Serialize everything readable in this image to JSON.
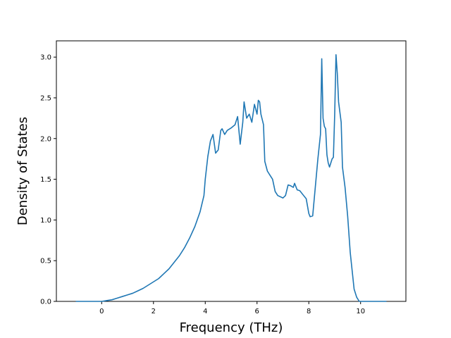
{
  "chart_data": {
    "type": "line",
    "title": "",
    "xlabel": "Frequency (THz)",
    "ylabel": "Density of States",
    "xlim": [
      -1.75,
      11.75
    ],
    "ylim": [
      0.0,
      3.2
    ],
    "x_ticks": [
      0,
      2,
      4,
      6,
      8,
      10
    ],
    "y_ticks": [
      0.0,
      0.5,
      1.0,
      1.5,
      2.0,
      2.5,
      3.0
    ],
    "x_tick_labels": [
      "0",
      "2",
      "4",
      "6",
      "8",
      "10"
    ],
    "y_tick_labels": [
      "0.0",
      "0.5",
      "1.0",
      "1.5",
      "2.0",
      "2.5",
      "3.0"
    ],
    "grid": false,
    "legend": "none",
    "line_color": "#1f77b4",
    "series": [
      {
        "x": [
          -1.0,
          -0.5,
          0.0,
          0.2,
          0.4,
          0.6,
          0.8,
          1.0,
          1.2,
          1.4,
          1.6,
          1.8,
          2.0,
          2.2,
          2.4,
          2.6,
          2.8,
          3.0,
          3.2,
          3.4,
          3.6,
          3.8,
          3.95,
          4.0,
          4.1,
          4.2,
          4.3,
          4.4,
          4.5,
          4.6,
          4.65,
          4.75,
          4.85,
          5.0,
          5.15,
          5.25,
          5.35,
          5.45,
          5.5,
          5.6,
          5.7,
          5.8,
          5.9,
          6.0,
          6.05,
          6.1,
          6.15,
          6.25,
          6.3,
          6.4,
          6.5,
          6.6,
          6.7,
          6.8,
          7.0,
          7.1,
          7.2,
          7.3,
          7.4,
          7.45,
          7.55,
          7.65,
          7.8,
          7.9,
          8.0,
          8.05,
          8.15,
          8.25,
          8.35,
          8.45,
          8.5,
          8.55,
          8.6,
          8.65,
          8.7,
          8.75,
          8.8,
          8.9,
          8.95,
          9.0,
          9.05,
          9.1,
          9.15,
          9.25,
          9.3,
          9.4,
          9.5,
          9.6,
          9.65,
          9.75,
          9.85,
          9.95,
          10.0,
          10.05,
          10.2,
          10.5,
          11.0
        ],
        "y": [
          0.0,
          0.0,
          0.0,
          0.01,
          0.02,
          0.04,
          0.06,
          0.08,
          0.1,
          0.13,
          0.16,
          0.2,
          0.24,
          0.28,
          0.34,
          0.4,
          0.48,
          0.56,
          0.66,
          0.78,
          0.92,
          1.1,
          1.3,
          1.5,
          1.78,
          1.97,
          2.05,
          1.82,
          1.86,
          2.1,
          2.12,
          2.05,
          2.1,
          2.13,
          2.17,
          2.27,
          1.93,
          2.2,
          2.45,
          2.25,
          2.3,
          2.2,
          2.42,
          2.3,
          2.47,
          2.45,
          2.3,
          2.17,
          1.72,
          1.6,
          1.55,
          1.5,
          1.35,
          1.3,
          1.27,
          1.3,
          1.43,
          1.42,
          1.4,
          1.45,
          1.37,
          1.36,
          1.3,
          1.26,
          1.08,
          1.04,
          1.05,
          1.4,
          1.75,
          2.05,
          2.98,
          2.25,
          2.15,
          2.12,
          1.8,
          1.7,
          1.65,
          1.75,
          1.77,
          2.3,
          3.03,
          2.8,
          2.45,
          2.2,
          1.65,
          1.4,
          1.05,
          0.6,
          0.45,
          0.15,
          0.05,
          0.0,
          0.0,
          0.0,
          0.0,
          0.0,
          0.0
        ]
      }
    ]
  }
}
